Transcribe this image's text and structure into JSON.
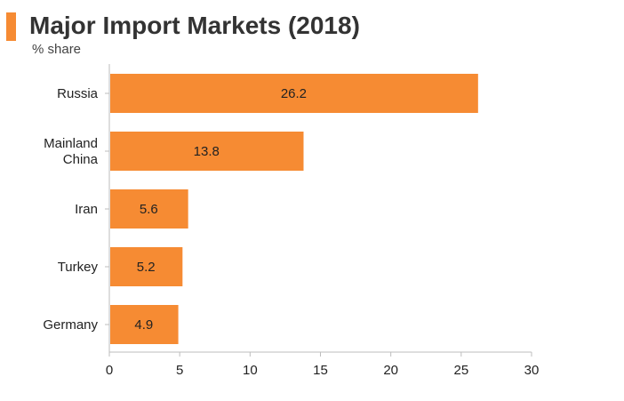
{
  "colors": {
    "accent": "#F68B33",
    "text": "#222222",
    "axis": "#BDBDBD"
  },
  "chart_data": {
    "type": "bar",
    "orientation": "horizontal",
    "title": "Major Import Markets (2018)",
    "subtitle": "% share",
    "categories": [
      {
        "lines": [
          "Russia"
        ]
      },
      {
        "lines": [
          "Mainland",
          "China"
        ]
      },
      {
        "lines": [
          "Iran"
        ]
      },
      {
        "lines": [
          "Turkey"
        ]
      },
      {
        "lines": [
          "Germany"
        ]
      }
    ],
    "values": [
      26.2,
      13.8,
      5.6,
      5.2,
      4.9
    ],
    "value_labels": [
      "26.2",
      "13.8",
      "5.6",
      "5.2",
      "4.9"
    ],
    "xlim": [
      0,
      30
    ],
    "xticks": [
      "0",
      "5",
      "10",
      "15",
      "20",
      "25",
      "30"
    ],
    "xtick_values": [
      0,
      5,
      10,
      15,
      20,
      25,
      30
    ],
    "grid": false,
    "xlabel": "",
    "ylabel": ""
  }
}
